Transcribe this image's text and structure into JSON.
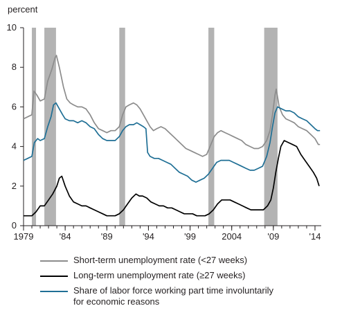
{
  "chart_data": {
    "type": "line",
    "ylabel": "percent",
    "ylim": [
      0,
      10
    ],
    "yticks": [
      "0",
      "2",
      "4",
      "6",
      "8",
      "10"
    ],
    "xlim": [
      1979.0,
      2014.75
    ],
    "xtick_labels": [
      "1979",
      "'84",
      "'89",
      "'94",
      "'99",
      "2004",
      "'09",
      "'14"
    ],
    "xticks": [
      1979,
      1984,
      1989,
      1994,
      1999,
      2004,
      2009,
      2014
    ],
    "grid": false,
    "legend_position": "bottom",
    "recession_shading": [
      [
        1980.0,
        1980.5
      ],
      [
        1981.5,
        1982.9
      ],
      [
        1990.5,
        1991.2
      ],
      [
        2001.2,
        2001.9
      ],
      [
        2007.9,
        2009.5
      ]
    ],
    "series": [
      {
        "name": "Short-term unemployment rate (<27 weeks)",
        "color": "#8c8c8c",
        "points": [
          [
            1979.0,
            5.4
          ],
          [
            1979.5,
            5.5
          ],
          [
            1980.0,
            5.6
          ],
          [
            1980.25,
            6.8
          ],
          [
            1980.6,
            6.6
          ],
          [
            1981.0,
            6.3
          ],
          [
            1981.5,
            6.4
          ],
          [
            1981.9,
            7.3
          ],
          [
            1982.4,
            7.9
          ],
          [
            1982.8,
            8.5
          ],
          [
            1982.95,
            8.6
          ],
          [
            1983.3,
            8.0
          ],
          [
            1983.8,
            7.0
          ],
          [
            1984.2,
            6.4
          ],
          [
            1984.6,
            6.2
          ],
          [
            1985.0,
            6.1
          ],
          [
            1985.5,
            6.0
          ],
          [
            1986.0,
            6.0
          ],
          [
            1986.5,
            5.9
          ],
          [
            1987.0,
            5.6
          ],
          [
            1987.5,
            5.2
          ],
          [
            1988.0,
            4.9
          ],
          [
            1988.5,
            4.8
          ],
          [
            1989.0,
            4.7
          ],
          [
            1989.5,
            4.8
          ],
          [
            1990.0,
            4.8
          ],
          [
            1990.5,
            5.0
          ],
          [
            1990.9,
            5.6
          ],
          [
            1991.3,
            6.0
          ],
          [
            1991.7,
            6.1
          ],
          [
            1992.2,
            6.2
          ],
          [
            1992.6,
            6.1
          ],
          [
            1993.0,
            5.9
          ],
          [
            1993.4,
            5.6
          ],
          [
            1993.8,
            5.3
          ],
          [
            1994.2,
            5.0
          ],
          [
            1994.6,
            4.8
          ],
          [
            1995.0,
            4.9
          ],
          [
            1995.5,
            5.0
          ],
          [
            1996.0,
            4.9
          ],
          [
            1996.5,
            4.7
          ],
          [
            1997.0,
            4.5
          ],
          [
            1997.5,
            4.3
          ],
          [
            1998.0,
            4.1
          ],
          [
            1998.5,
            3.9
          ],
          [
            1999.0,
            3.8
          ],
          [
            1999.5,
            3.7
          ],
          [
            2000.0,
            3.6
          ],
          [
            2000.5,
            3.5
          ],
          [
            2001.0,
            3.6
          ],
          [
            2001.5,
            4.1
          ],
          [
            2001.9,
            4.5
          ],
          [
            2002.3,
            4.7
          ],
          [
            2002.7,
            4.8
          ],
          [
            2003.2,
            4.7
          ],
          [
            2003.7,
            4.6
          ],
          [
            2004.2,
            4.5
          ],
          [
            2004.7,
            4.4
          ],
          [
            2005.2,
            4.3
          ],
          [
            2005.7,
            4.1
          ],
          [
            2006.2,
            4.0
          ],
          [
            2006.7,
            3.9
          ],
          [
            2007.2,
            3.9
          ],
          [
            2007.7,
            4.0
          ],
          [
            2008.2,
            4.3
          ],
          [
            2008.6,
            4.8
          ],
          [
            2008.9,
            5.6
          ],
          [
            2009.2,
            6.6
          ],
          [
            2009.35,
            6.9
          ],
          [
            2009.7,
            6.0
          ],
          [
            2010.1,
            5.6
          ],
          [
            2010.5,
            5.4
          ],
          [
            2011.0,
            5.3
          ],
          [
            2011.5,
            5.2
          ],
          [
            2012.0,
            5.0
          ],
          [
            2012.5,
            4.9
          ],
          [
            2013.0,
            4.8
          ],
          [
            2013.5,
            4.6
          ],
          [
            2014.0,
            4.4
          ],
          [
            2014.4,
            4.1
          ],
          [
            2014.6,
            4.1
          ]
        ]
      },
      {
        "name": "Long-term unemployment rate (≥27 weeks)",
        "color": "#000000",
        "points": [
          [
            1979.0,
            0.5
          ],
          [
            1979.5,
            0.5
          ],
          [
            1980.0,
            0.5
          ],
          [
            1980.5,
            0.7
          ],
          [
            1981.0,
            1.0
          ],
          [
            1981.5,
            1.0
          ],
          [
            1982.0,
            1.3
          ],
          [
            1982.5,
            1.6
          ],
          [
            1983.0,
            2.0
          ],
          [
            1983.3,
            2.4
          ],
          [
            1983.6,
            2.5
          ],
          [
            1984.0,
            2.0
          ],
          [
            1984.5,
            1.5
          ],
          [
            1985.0,
            1.2
          ],
          [
            1985.5,
            1.1
          ],
          [
            1986.0,
            1.0
          ],
          [
            1986.5,
            1.0
          ],
          [
            1987.0,
            0.9
          ],
          [
            1987.5,
            0.8
          ],
          [
            1988.0,
            0.7
          ],
          [
            1988.5,
            0.6
          ],
          [
            1989.0,
            0.5
          ],
          [
            1989.5,
            0.5
          ],
          [
            1990.0,
            0.5
          ],
          [
            1990.5,
            0.6
          ],
          [
            1991.0,
            0.8
          ],
          [
            1991.5,
            1.1
          ],
          [
            1992.0,
            1.4
          ],
          [
            1992.5,
            1.6
          ],
          [
            1992.9,
            1.5
          ],
          [
            1993.3,
            1.5
          ],
          [
            1993.8,
            1.4
          ],
          [
            1994.3,
            1.2
          ],
          [
            1994.8,
            1.1
          ],
          [
            1995.3,
            1.0
          ],
          [
            1995.8,
            1.0
          ],
          [
            1996.3,
            0.9
          ],
          [
            1996.8,
            0.9
          ],
          [
            1997.3,
            0.8
          ],
          [
            1997.8,
            0.7
          ],
          [
            1998.3,
            0.6
          ],
          [
            1998.8,
            0.6
          ],
          [
            1999.3,
            0.6
          ],
          [
            1999.8,
            0.5
          ],
          [
            2000.3,
            0.5
          ],
          [
            2000.8,
            0.5
          ],
          [
            2001.3,
            0.6
          ],
          [
            2001.8,
            0.8
          ],
          [
            2002.3,
            1.1
          ],
          [
            2002.8,
            1.3
          ],
          [
            2003.3,
            1.3
          ],
          [
            2003.8,
            1.3
          ],
          [
            2004.3,
            1.2
          ],
          [
            2004.8,
            1.1
          ],
          [
            2005.3,
            1.0
          ],
          [
            2005.8,
            0.9
          ],
          [
            2006.3,
            0.8
          ],
          [
            2006.8,
            0.8
          ],
          [
            2007.3,
            0.8
          ],
          [
            2007.8,
            0.8
          ],
          [
            2008.3,
            1.0
          ],
          [
            2008.7,
            1.3
          ],
          [
            2009.0,
            1.9
          ],
          [
            2009.3,
            2.7
          ],
          [
            2009.6,
            3.4
          ],
          [
            2009.9,
            4.0
          ],
          [
            2010.3,
            4.3
          ],
          [
            2010.8,
            4.2
          ],
          [
            2011.3,
            4.1
          ],
          [
            2011.8,
            4.0
          ],
          [
            2012.3,
            3.6
          ],
          [
            2012.8,
            3.3
          ],
          [
            2013.3,
            3.0
          ],
          [
            2013.8,
            2.7
          ],
          [
            2014.2,
            2.4
          ],
          [
            2014.5,
            2.0
          ]
        ]
      },
      {
        "name": "Share of labor force working part time involuntarily for economic reasons",
        "color": "#1f6f95",
        "points": [
          [
            1979.0,
            3.3
          ],
          [
            1979.5,
            3.4
          ],
          [
            1980.0,
            3.5
          ],
          [
            1980.3,
            4.2
          ],
          [
            1980.7,
            4.4
          ],
          [
            1981.0,
            4.3
          ],
          [
            1981.5,
            4.4
          ],
          [
            1981.9,
            5.0
          ],
          [
            1982.3,
            5.5
          ],
          [
            1982.6,
            6.1
          ],
          [
            1982.9,
            6.2
          ],
          [
            1983.3,
            5.9
          ],
          [
            1983.7,
            5.6
          ],
          [
            1984.0,
            5.4
          ],
          [
            1984.5,
            5.3
          ],
          [
            1985.0,
            5.3
          ],
          [
            1985.5,
            5.2
          ],
          [
            1986.0,
            5.3
          ],
          [
            1986.5,
            5.2
          ],
          [
            1987.0,
            5.0
          ],
          [
            1987.5,
            4.9
          ],
          [
            1988.0,
            4.6
          ],
          [
            1988.5,
            4.4
          ],
          [
            1989.0,
            4.3
          ],
          [
            1989.5,
            4.3
          ],
          [
            1990.0,
            4.3
          ],
          [
            1990.5,
            4.5
          ],
          [
            1990.9,
            4.8
          ],
          [
            1991.3,
            5.0
          ],
          [
            1991.7,
            5.1
          ],
          [
            1992.2,
            5.1
          ],
          [
            1992.6,
            5.2
          ],
          [
            1993.0,
            5.1
          ],
          [
            1993.4,
            5.0
          ],
          [
            1993.7,
            4.9
          ],
          [
            1993.9,
            3.7
          ],
          [
            1994.2,
            3.5
          ],
          [
            1994.7,
            3.4
          ],
          [
            1995.2,
            3.4
          ],
          [
            1995.7,
            3.3
          ],
          [
            1996.2,
            3.2
          ],
          [
            1996.7,
            3.1
          ],
          [
            1997.2,
            2.9
          ],
          [
            1997.7,
            2.7
          ],
          [
            1998.2,
            2.6
          ],
          [
            1998.7,
            2.5
          ],
          [
            1999.2,
            2.3
          ],
          [
            1999.7,
            2.2
          ],
          [
            2000.2,
            2.3
          ],
          [
            2000.7,
            2.4
          ],
          [
            2001.2,
            2.6
          ],
          [
            2001.7,
            2.9
          ],
          [
            2002.2,
            3.2
          ],
          [
            2002.7,
            3.3
          ],
          [
            2003.2,
            3.3
          ],
          [
            2003.7,
            3.3
          ],
          [
            2004.2,
            3.2
          ],
          [
            2004.7,
            3.1
          ],
          [
            2005.2,
            3.0
          ],
          [
            2005.7,
            2.9
          ],
          [
            2006.2,
            2.8
          ],
          [
            2006.7,
            2.8
          ],
          [
            2007.2,
            2.9
          ],
          [
            2007.7,
            3.0
          ],
          [
            2008.2,
            3.5
          ],
          [
            2008.6,
            4.2
          ],
          [
            2008.9,
            5.0
          ],
          [
            2009.2,
            5.7
          ],
          [
            2009.5,
            6.0
          ],
          [
            2010.0,
            5.9
          ],
          [
            2010.5,
            5.8
          ],
          [
            2011.0,
            5.8
          ],
          [
            2011.5,
            5.7
          ],
          [
            2012.0,
            5.5
          ],
          [
            2012.5,
            5.4
          ],
          [
            2013.0,
            5.3
          ],
          [
            2013.5,
            5.1
          ],
          [
            2014.0,
            4.9
          ],
          [
            2014.3,
            4.8
          ],
          [
            2014.6,
            4.8
          ]
        ]
      }
    ]
  },
  "legend": {
    "items": [
      {
        "label_lines": [
          "Short-term unemployment rate (<27 weeks)"
        ],
        "color": "#8c8c8c"
      },
      {
        "label_lines": [
          "Long-term unemployment rate (≥27 weeks)"
        ],
        "color": "#000000"
      },
      {
        "label_lines": [
          "Share of labor force working part time involuntarily",
          "for economic reasons"
        ],
        "color": "#1f6f95"
      }
    ]
  }
}
